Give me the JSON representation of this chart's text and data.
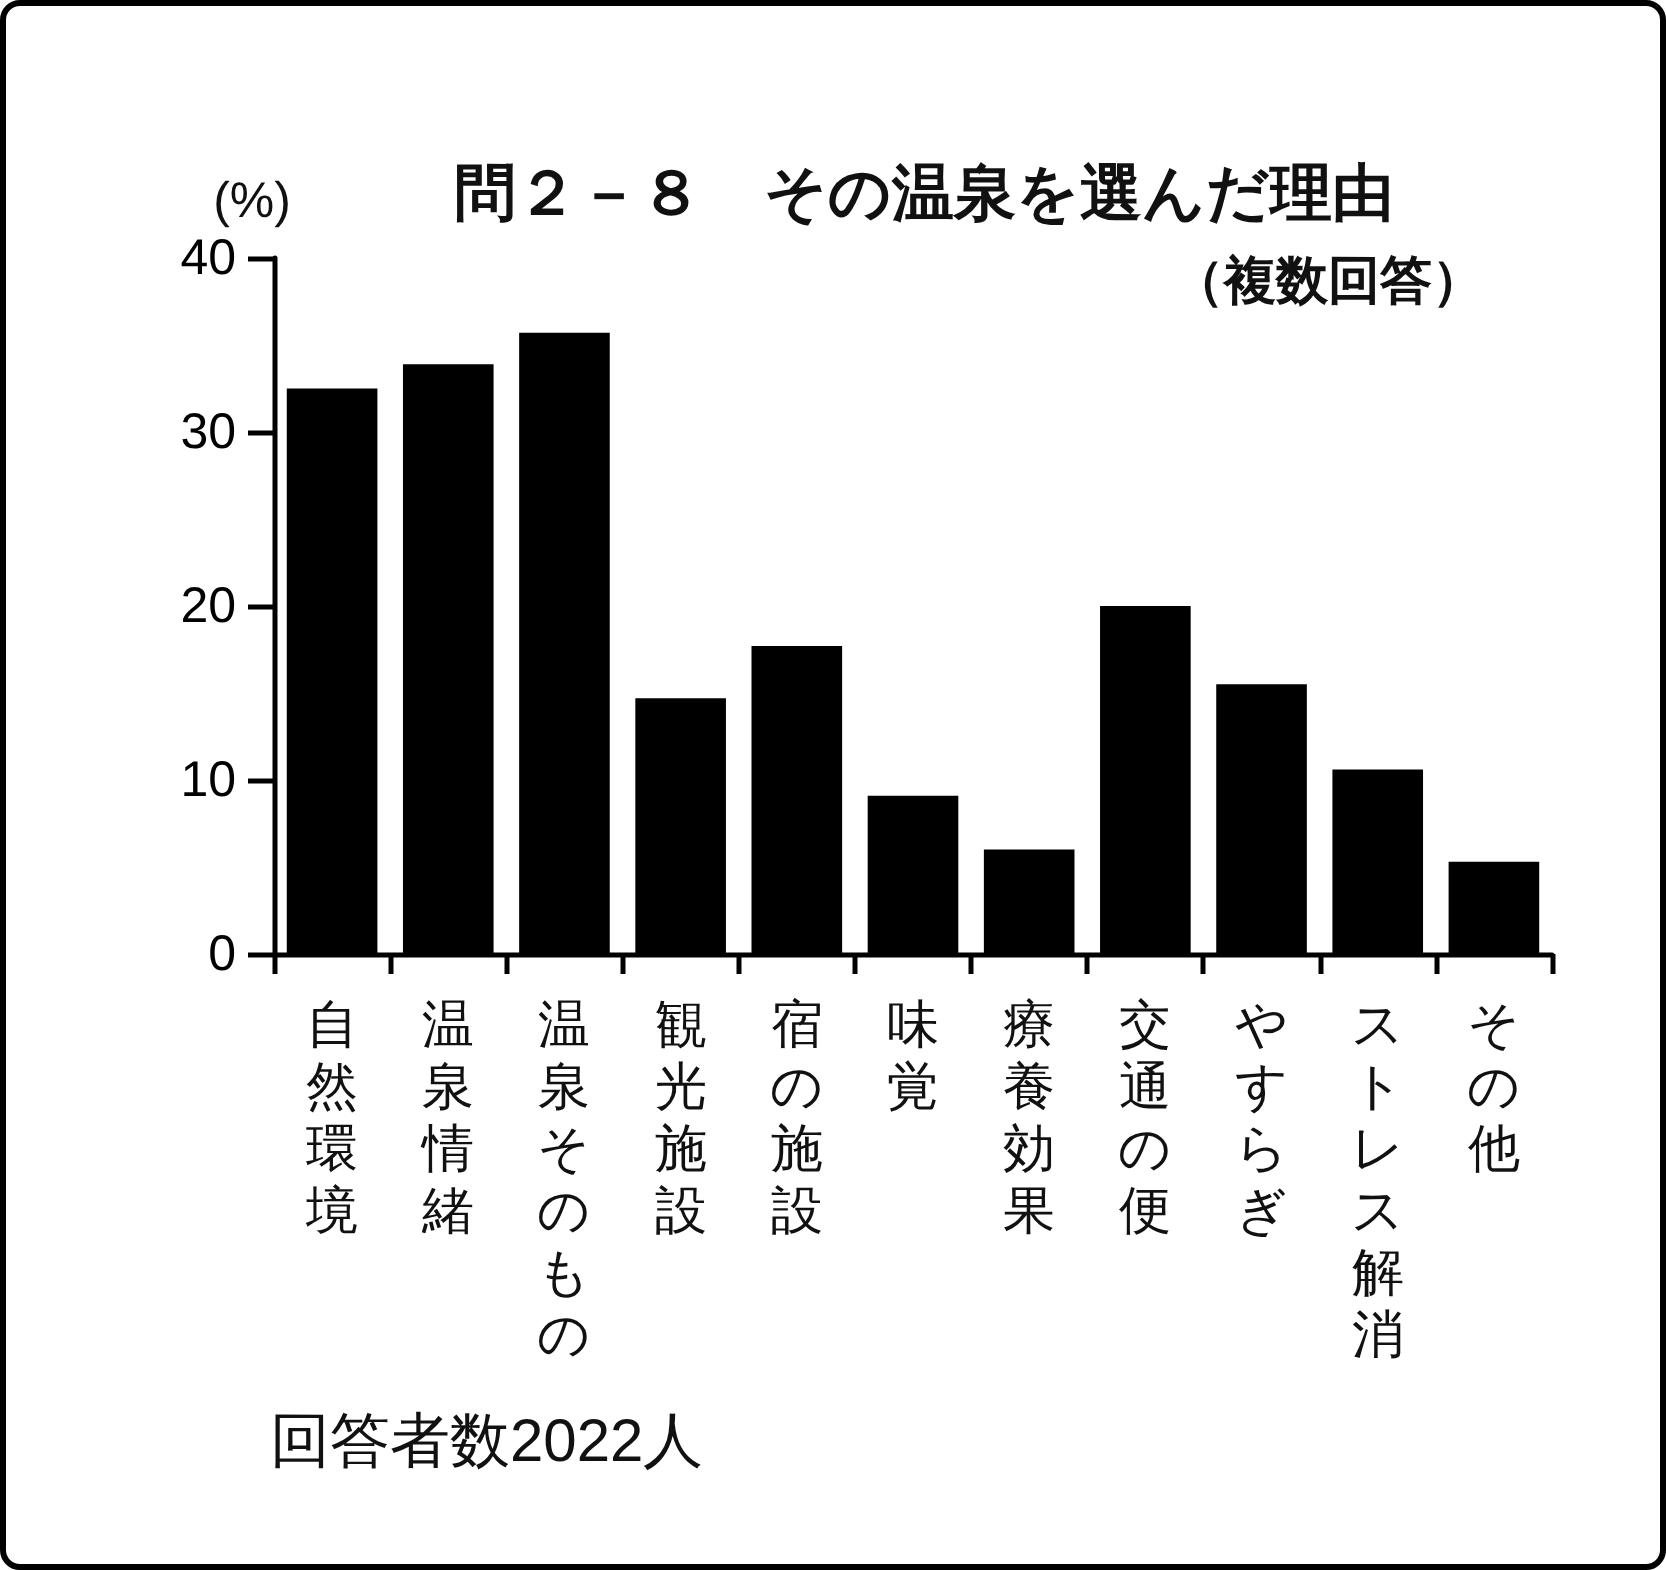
{
  "chart_data": {
    "type": "bar",
    "title": "問２－８　その温泉を選んだ理由",
    "subtitle": "（複数回答）",
    "ylabel": "(%)",
    "categories": [
      "自然環境",
      "温泉情緒",
      "温泉そのもの",
      "観光施設",
      "宿の施設",
      "味覚",
      "療養効果",
      "交通の便",
      "やすらぎ",
      "ストレス解消",
      "その他"
    ],
    "values": [
      32.5,
      33.9,
      35.7,
      14.7,
      17.7,
      9.1,
      6.0,
      20.0,
      15.5,
      10.6,
      5.3
    ],
    "color": "#000000",
    "ylim": [
      0,
      40
    ],
    "yticks": [
      0,
      10,
      20,
      30,
      40
    ],
    "annotations": [
      "回答者数2022人"
    ]
  }
}
